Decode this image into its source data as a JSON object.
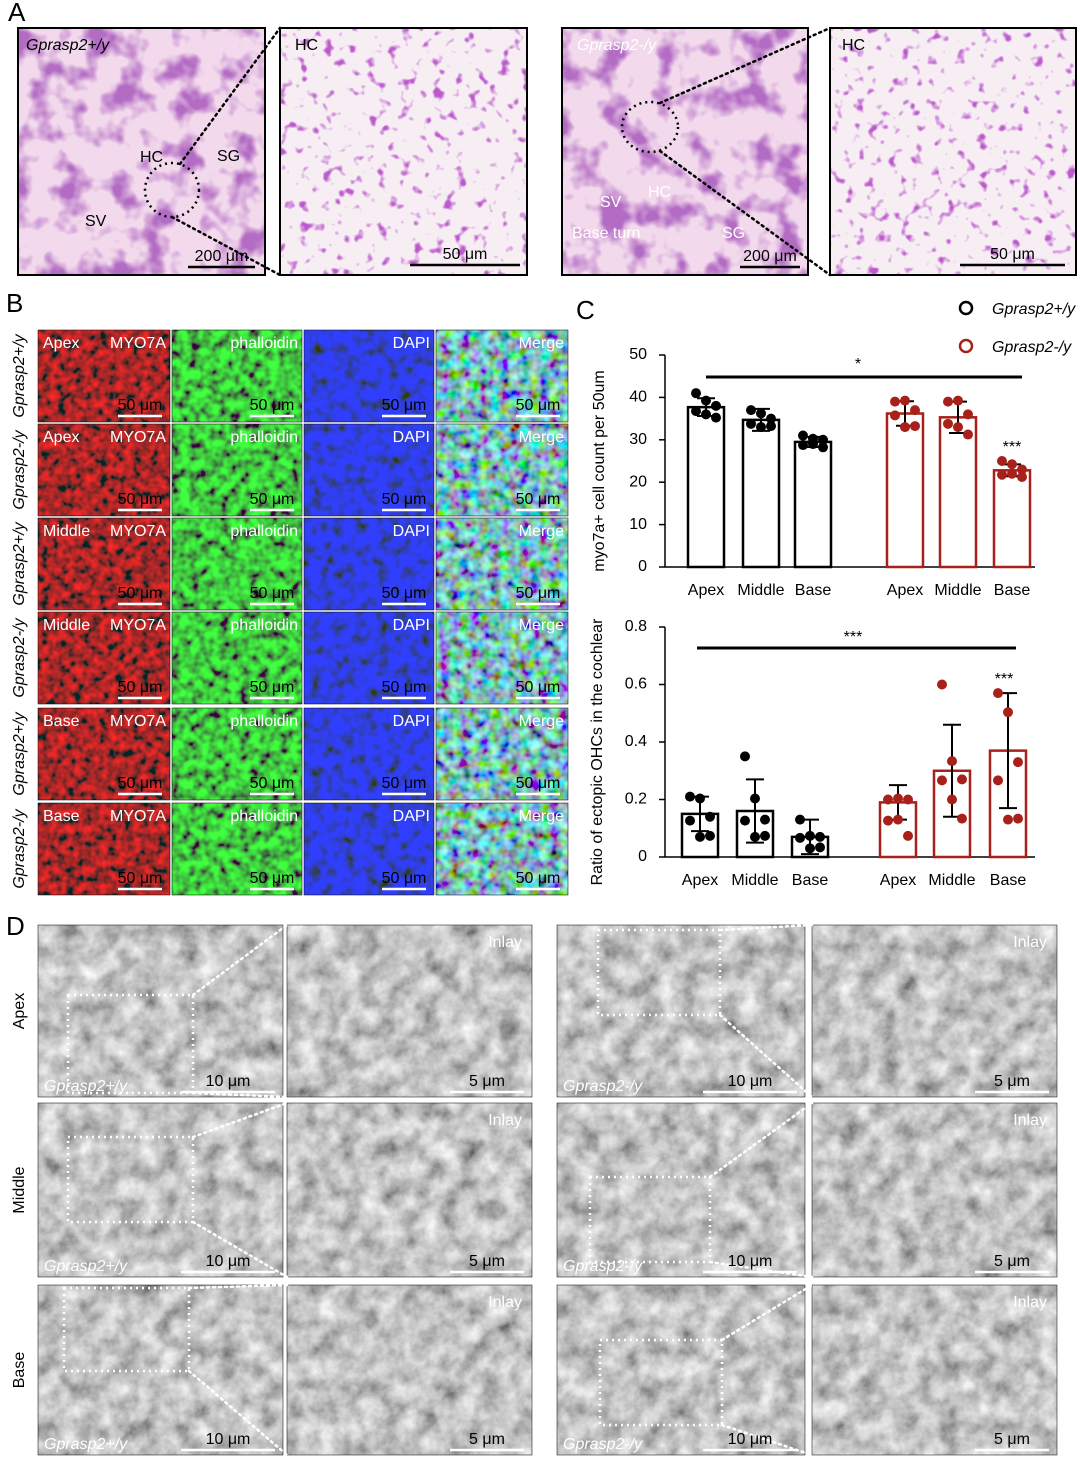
{
  "panel_A": {
    "letter": "A",
    "images": [
      {
        "title": "Gprasp2+/y",
        "labels": [
          "HC",
          "SG",
          "SV"
        ],
        "scale": "200 μm"
      },
      {
        "title": "HC",
        "scale": "50 μm"
      },
      {
        "title": "Gprasp2-/y",
        "labels": [
          "SV",
          "HC",
          "Base turn",
          "SG"
        ],
        "scale": "200 μm"
      },
      {
        "title": "HC",
        "scale": "50 μm"
      }
    ]
  },
  "panel_B": {
    "letter": "B",
    "rows": [
      {
        "region": "Apex",
        "genotype": "Gprasp2+/y"
      },
      {
        "region": "Apex",
        "genotype": "Gprasp2-/y"
      },
      {
        "region": "Middle",
        "genotype": "Gprasp2+/y"
      },
      {
        "region": "Middle",
        "genotype": "Gprasp2-/y"
      },
      {
        "region": "Base",
        "genotype": "Gprasp2+/y"
      },
      {
        "region": "Base",
        "genotype": "Gprasp2-/y"
      }
    ],
    "channels": [
      "MYO7A",
      "phalloidin",
      "DAPI",
      "Merge"
    ],
    "scale": "50 μm"
  },
  "panel_C": {
    "letter": "C"
  },
  "chart_data": [
    {
      "type": "bar",
      "ylabel": "myo7a+ cell count per 50um",
      "categories": [
        "Apex",
        "Middle",
        "Base"
      ],
      "ylim": [
        0,
        50
      ],
      "yticks": [
        0,
        10,
        20,
        30,
        40,
        50
      ],
      "series": [
        {
          "name": "Gprasp2+/y",
          "color": "#000000",
          "values": [
            37.7,
            34.7,
            29.5
          ],
          "errors": [
            2.1,
            2.6,
            1.2
          ],
          "points": [
            [
              41,
              39,
              38,
              37,
              36,
              35
            ],
            [
              37,
              36,
              35,
              34,
              33,
              33
            ],
            [
              31,
              30,
              30,
              29,
              29,
              28
            ]
          ]
        },
        {
          "name": "Gprasp2-/y",
          "color": "#a8201a",
          "values": [
            36.2,
            35.3,
            22.8
          ],
          "errors": [
            2.9,
            3.7,
            1.4
          ],
          "points": [
            [
              39,
              39,
              37,
              36,
              33,
              33
            ],
            [
              39,
              39,
              36,
              34,
              33,
              31
            ],
            [
              25,
              24,
              23,
              22,
              22,
              21
            ]
          ]
        }
      ],
      "annotations": [
        "*",
        "***"
      ]
    },
    {
      "type": "bar",
      "ylabel": "Ratio of ectopic OHCs in the cochlear",
      "categories": [
        "Apex",
        "Middle",
        "Base"
      ],
      "ylim": [
        0,
        0.8
      ],
      "yticks": [
        0,
        0.2,
        0.4,
        0.6,
        0.8
      ],
      "series": [
        {
          "name": "Gprasp2+/y",
          "color": "#000000",
          "values": [
            0.15,
            0.16,
            0.07
          ],
          "errors": [
            0.06,
            0.11,
            0.06
          ],
          "points": [
            [
              0.21,
              0.2,
              0.14,
              0.13,
              0.07,
              0.07
            ],
            [
              0.35,
              0.2,
              0.13,
              0.13,
              0.07,
              0.07
            ],
            [
              0.13,
              0.07,
              0.07,
              0.07,
              0.03,
              0.03
            ]
          ]
        },
        {
          "name": "Gprasp2-/y",
          "color": "#a8201a",
          "values": [
            0.19,
            0.3,
            0.37
          ],
          "errors": [
            0.06,
            0.16,
            0.2
          ],
          "points": [
            [
              0.2,
              0.2,
              0.2,
              0.13,
              0.13,
              0.07
            ],
            [
              0.6,
              0.33,
              0.27,
              0.27,
              0.2,
              0.13
            ],
            [
              0.57,
              0.5,
              0.33,
              0.27,
              0.13,
              0.13
            ]
          ]
        }
      ],
      "annotations": [
        "***",
        "***"
      ]
    }
  ],
  "panel_D": {
    "letter": "D",
    "rows": [
      "Apex",
      "Middle",
      "Base"
    ],
    "genotypes": [
      "Gprasp2+/y",
      "Gprasp2-/y"
    ],
    "inlay": "Inlay",
    "scales": [
      "10 μm",
      "5 μm"
    ]
  }
}
